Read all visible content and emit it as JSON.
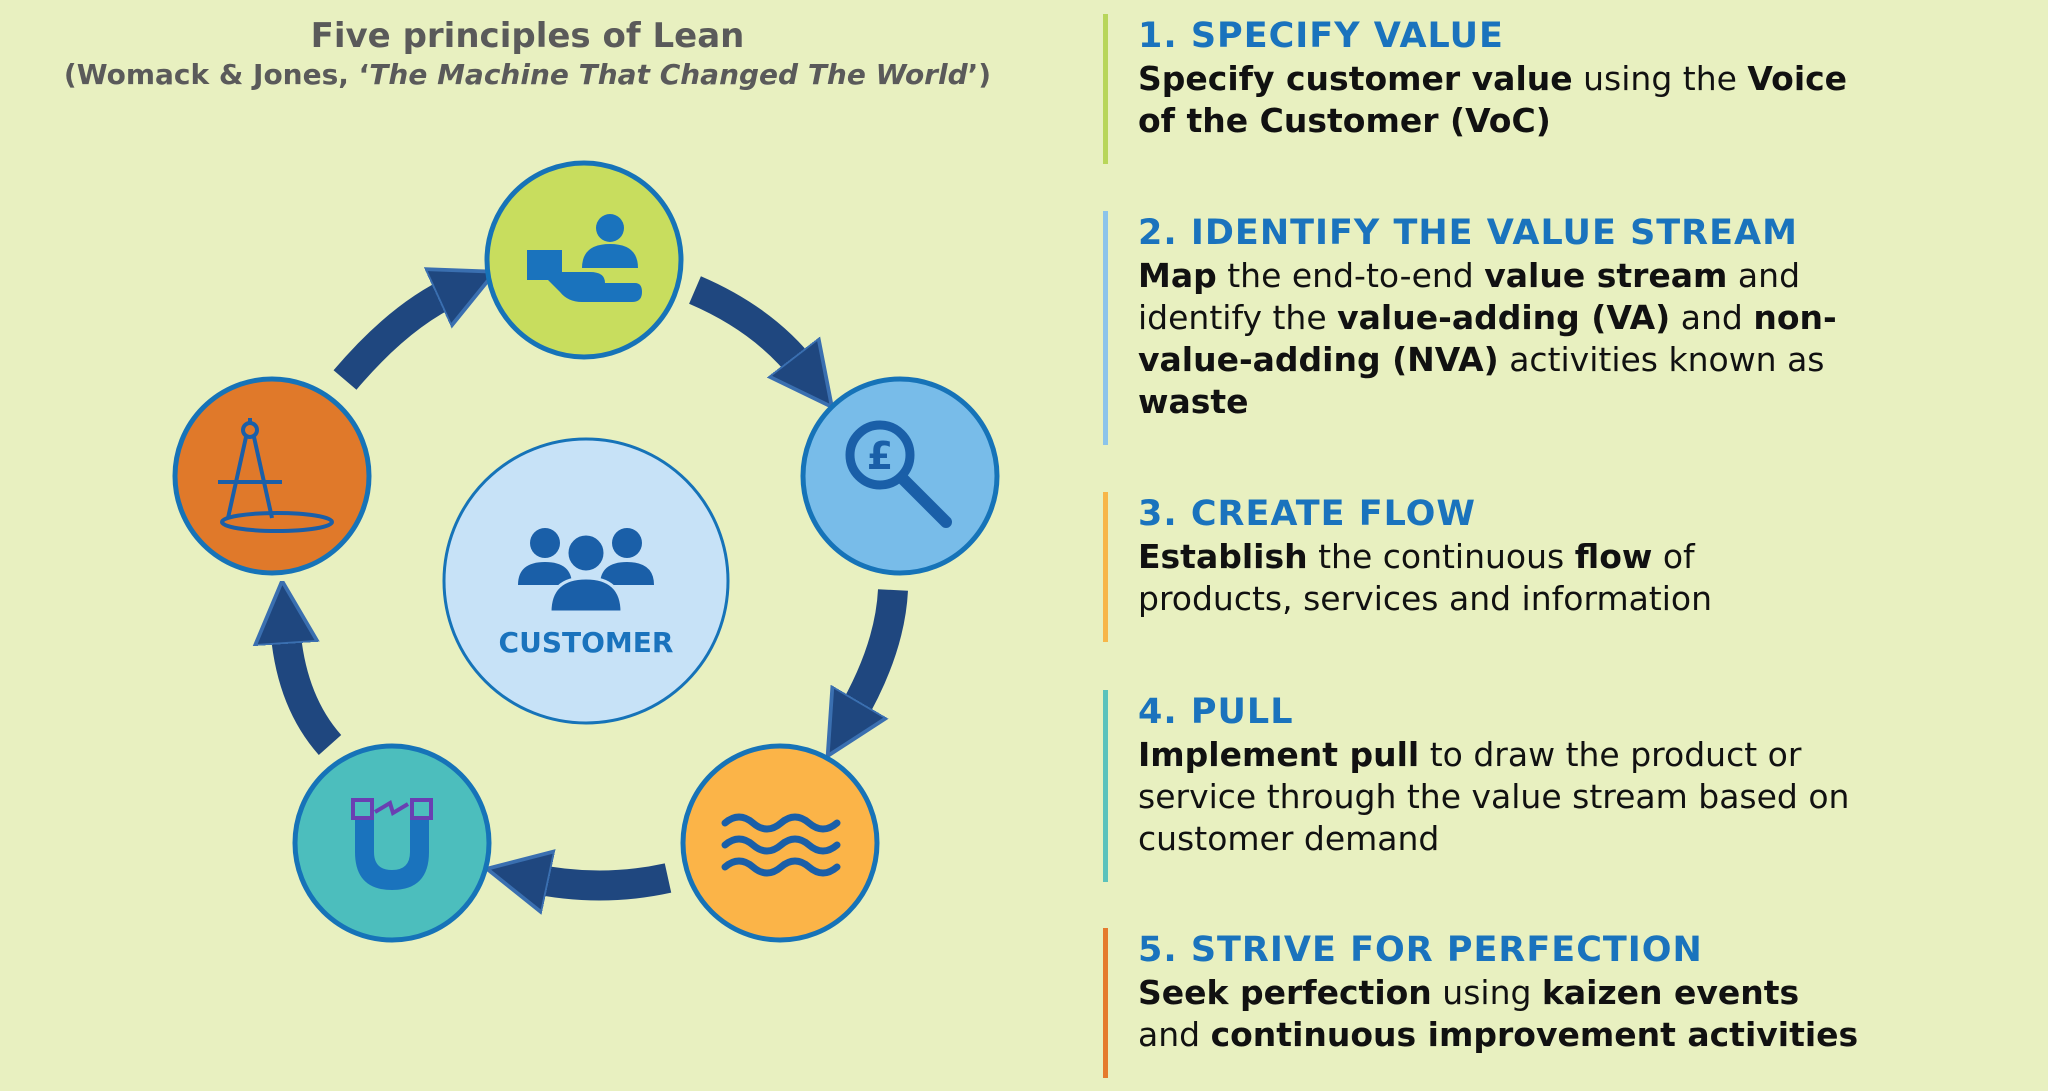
{
  "title": {
    "main": "Five principles of Lean",
    "sub_prefix": "(Womack & Jones, ‘",
    "sub_italic": "The Machine That Changed The World",
    "sub_suffix": "’)"
  },
  "center": {
    "label": "CUSTOMER",
    "icon": "customer-group-icon"
  },
  "cycle_nodes": [
    {
      "icon": "hand-person-icon",
      "color": "#c8dd5e"
    },
    {
      "icon": "pound-magnifier-icon",
      "color": "#78bce9"
    },
    {
      "icon": "waves-icon",
      "color": "#fbb448"
    },
    {
      "icon": "magnet-icon",
      "color": "#4cbebd"
    },
    {
      "icon": "compass-icon",
      "color": "#e0792a"
    }
  ],
  "colors": {
    "background": "#e8f0c0",
    "arrow": "#1f477f",
    "node_border": "#1673b8",
    "heading": "#1a73bd",
    "center_fill": "#c7e2f7"
  },
  "principles": [
    {
      "heading": "1. SPECIFY VALUE",
      "accent": "#b8d65a",
      "body": [
        [
          {
            "t": "Specify customer value",
            "b": true
          },
          {
            "t": " using the ",
            "b": false
          },
          {
            "t": "Voice",
            "b": true
          }
        ],
        [
          {
            "t": "of the Customer (VoC)",
            "b": true
          }
        ]
      ]
    },
    {
      "heading": "2. IDENTIFY THE VALUE STREAM",
      "accent": "#8cc4ea",
      "body": [
        [
          {
            "t": "Map",
            "b": true
          },
          {
            "t": " the end-to-end ",
            "b": false
          },
          {
            "t": "value stream",
            "b": true
          },
          {
            "t": " and",
            "b": false
          }
        ],
        [
          {
            "t": "identify the ",
            "b": false
          },
          {
            "t": "value-adding (VA)",
            "b": true
          },
          {
            "t": " and ",
            "b": false
          },
          {
            "t": "non-",
            "b": true
          }
        ],
        [
          {
            "t": "value-adding (NVA)",
            "b": true
          },
          {
            "t": " activities known as",
            "b": false
          }
        ],
        [
          {
            "t": "waste",
            "b": true
          }
        ]
      ]
    },
    {
      "heading": "3. CREATE FLOW",
      "accent": "#f7b649",
      "body": [
        [
          {
            "t": "Establish",
            "b": true
          },
          {
            "t": " the continuous ",
            "b": false
          },
          {
            "t": "flow",
            "b": true
          },
          {
            "t": " of",
            "b": false
          }
        ],
        [
          {
            "t": "products, services and information",
            "b": false
          }
        ]
      ]
    },
    {
      "heading": "4. PULL",
      "accent": "#5cc2bc",
      "body": [
        [
          {
            "t": "Implement pull",
            "b": true
          },
          {
            "t": " to draw the product or",
            "b": false
          }
        ],
        [
          {
            "t": "service through the value stream based on",
            "b": false
          }
        ],
        [
          {
            "t": "customer demand",
            "b": false
          }
        ]
      ]
    },
    {
      "heading": "5. STRIVE FOR PERFECTION",
      "accent": "#e57b2e",
      "body": [
        [
          {
            "t": "Seek perfection",
            "b": true
          },
          {
            "t": " using ",
            "b": false
          },
          {
            "t": "kaizen events",
            "b": true
          }
        ],
        [
          {
            "t": "and ",
            "b": false
          },
          {
            "t": "continuous improvement activities",
            "b": true
          }
        ]
      ]
    }
  ]
}
